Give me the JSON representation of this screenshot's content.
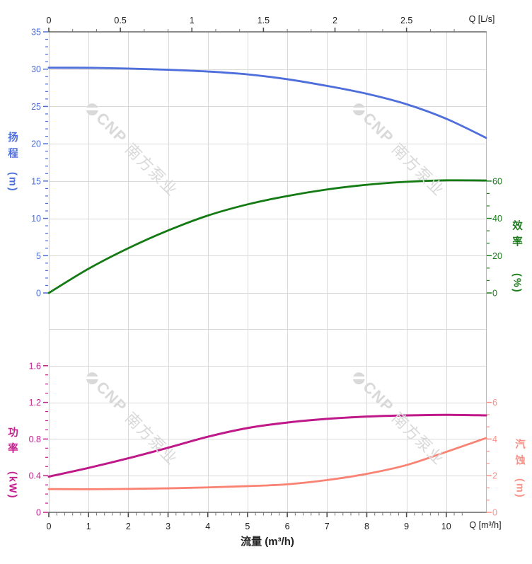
{
  "watermark": {
    "text_latin": "CNP",
    "text_cjk": "南方泵业",
    "color": "#d9d9d9"
  },
  "titles": {
    "top_x_axis": "Q [L/s]",
    "bottom_x_axis": "Q [m³/h]",
    "flow": "流量 (m³/h)"
  },
  "chart_data": {
    "type": "line",
    "x_bottom": {
      "label": "流量 (m³/h)",
      "unit_label": "Q [m³/h]",
      "ticks": [
        0,
        1,
        2,
        3,
        4,
        5,
        6,
        7,
        8,
        9,
        10
      ],
      "range": [
        0,
        11
      ]
    },
    "x_top": {
      "unit_label": "Q [L/s]",
      "ticks": [
        0,
        0.5,
        1,
        1.5,
        2,
        2.5
      ],
      "range": [
        0,
        3.056
      ]
    },
    "panels": [
      {
        "name": "head-efficiency",
        "left_axis": {
          "title": "扬程",
          "unit": "(m)",
          "color": "#4d6edb",
          "ticks": [
            0,
            5,
            10,
            15,
            20,
            25,
            30,
            35
          ],
          "range": [
            0,
            35
          ]
        },
        "right_axis": {
          "title": "效率",
          "unit": "(%)",
          "color": "#1a7c1a",
          "ticks": [
            0,
            20,
            40,
            60
          ],
          "range": [
            0,
            140
          ]
        },
        "series": [
          {
            "name": "head",
            "axis": "left",
            "color": "#4d6edb",
            "width": 2.8,
            "points": [
              [
                0,
                30.2
              ],
              [
                1,
                30.18
              ],
              [
                2,
                30.08
              ],
              [
                3,
                29.92
              ],
              [
                4,
                29.68
              ],
              [
                5,
                29.3
              ],
              [
                6,
                28.65
              ],
              [
                7,
                27.75
              ],
              [
                8,
                26.7
              ],
              [
                9,
                25.3
              ],
              [
                10,
                23.35
              ],
              [
                11,
                20.8
              ]
            ]
          },
          {
            "name": "efficiency",
            "axis": "right",
            "color": "#147a14",
            "width": 2.8,
            "points": [
              [
                0,
                0
              ],
              [
                1,
                13
              ],
              [
                2,
                24
              ],
              [
                3,
                33.5
              ],
              [
                4,
                41.5
              ],
              [
                5,
                47.5
              ],
              [
                6,
                52
              ],
              [
                7,
                55.5
              ],
              [
                8,
                58
              ],
              [
                9,
                59.6
              ],
              [
                10,
                60.4
              ],
              [
                11,
                60.3
              ]
            ]
          }
        ]
      },
      {
        "name": "power-npsh",
        "left_axis": {
          "title": "功率",
          "unit": "(kW)",
          "color": "#c42090",
          "ticks": [
            0,
            0.4,
            0.8,
            1.2,
            1.6
          ],
          "range": [
            0,
            2
          ]
        },
        "right_axis": {
          "title": "汽蚀",
          "unit": "(m)",
          "color": "#fa9187",
          "ticks": [
            0,
            2,
            4,
            6
          ],
          "range": [
            0,
            10
          ]
        },
        "series": [
          {
            "name": "power",
            "axis": "left",
            "color": "#bf1889",
            "width": 3,
            "points": [
              [
                0,
                0.39
              ],
              [
                1,
                0.485
              ],
              [
                2,
                0.59
              ],
              [
                3,
                0.705
              ],
              [
                4,
                0.825
              ],
              [
                5,
                0.92
              ],
              [
                6,
                0.98
              ],
              [
                7,
                1.02
              ],
              [
                8,
                1.045
              ],
              [
                9,
                1.058
              ],
              [
                10,
                1.064
              ],
              [
                11,
                1.058
              ]
            ]
          },
          {
            "name": "npsh",
            "axis": "right",
            "color": "#fa8273",
            "width": 2.8,
            "points": [
              [
                0,
                1.27
              ],
              [
                1,
                1.26
              ],
              [
                2,
                1.28
              ],
              [
                3,
                1.31
              ],
              [
                4,
                1.36
              ],
              [
                5,
                1.43
              ],
              [
                6,
                1.53
              ],
              [
                7,
                1.76
              ],
              [
                8,
                2.1
              ],
              [
                9,
                2.58
              ],
              [
                10,
                3.3
              ],
              [
                11,
                4.05
              ]
            ]
          }
        ]
      }
    ]
  }
}
